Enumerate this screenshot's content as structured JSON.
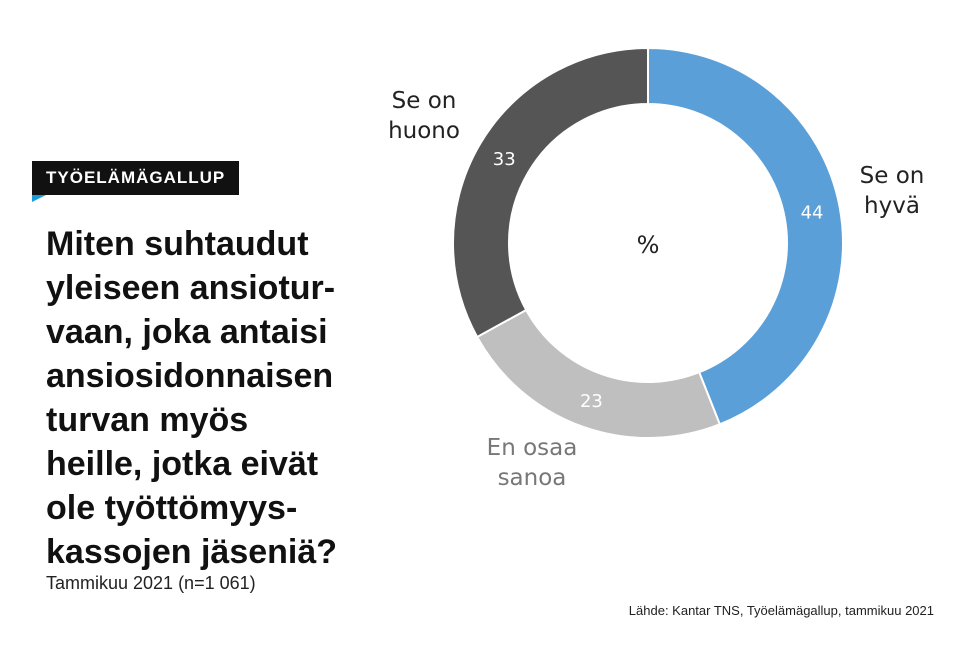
{
  "header": {
    "badge": "TYÖELÄMÄGALLUP",
    "question_lines": [
      "Miten suhtaudut",
      "yleiseen ansiotur-",
      "vaan, joka antaisi",
      "ansiosidonnaisen",
      "turvan myös",
      "heille, jotka eivät",
      "ole työttömyys-",
      "kassojen jäseniä?"
    ],
    "subtitle": "Tammikuu 2021 (n=1 061)"
  },
  "footer": {
    "source": "Lähde: Kantar TNS, Työelämägallup, tammikuu 2021"
  },
  "chart_data": {
    "type": "pie",
    "variant": "donut",
    "center_label": "%",
    "slices": [
      {
        "label": [
          "Se on",
          "hyvä"
        ],
        "value": 44,
        "color": "#5b9fd8",
        "label_color": "#222222"
      },
      {
        "label": [
          "En osaa",
          "sanoa"
        ],
        "value": 23,
        "color": "#bfbfbf",
        "label_color": "#777777"
      },
      {
        "label": [
          "Se on",
          "huono"
        ],
        "value": 33,
        "color": "#555555",
        "label_color": "#222222"
      }
    ],
    "start_angle": "top",
    "direction": "clockwise"
  }
}
